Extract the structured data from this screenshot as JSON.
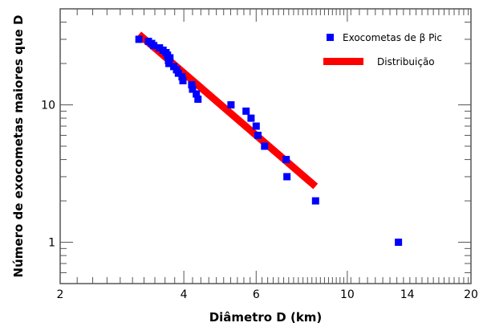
{
  "chart_data": {
    "type": "scatter",
    "xscale": "log",
    "yscale": "log",
    "xlabel": "Diâmetro D (km)",
    "ylabel": "Número de exocometas maiores que D",
    "xlim": [
      2,
      20
    ],
    "ylim": [
      0.5,
      50
    ],
    "xticks": [
      2,
      4,
      6,
      10,
      14,
      20
    ],
    "yticks": [
      1,
      10
    ],
    "grid": false,
    "legend_placement": "top-right",
    "series": [
      {
        "name": "Exocometas de β Pic",
        "kind": "scatter",
        "color": "#0000ff",
        "points": [
          [
            3.11,
            30
          ],
          [
            3.28,
            29
          ],
          [
            3.34,
            28
          ],
          [
            3.38,
            27
          ],
          [
            3.49,
            26
          ],
          [
            3.56,
            25
          ],
          [
            3.62,
            24
          ],
          [
            3.65,
            23
          ],
          [
            3.7,
            22
          ],
          [
            3.67,
            21
          ],
          [
            3.68,
            20
          ],
          [
            3.78,
            19
          ],
          [
            3.84,
            18
          ],
          [
            3.88,
            17
          ],
          [
            3.96,
            16
          ],
          [
            3.98,
            15
          ],
          [
            4.18,
            14
          ],
          [
            4.2,
            13
          ],
          [
            4.29,
            12
          ],
          [
            4.33,
            11
          ],
          [
            5.21,
            10
          ],
          [
            5.67,
            9
          ],
          [
            5.83,
            8
          ],
          [
            6.0,
            7
          ],
          [
            6.06,
            6
          ],
          [
            6.29,
            5
          ],
          [
            7.1,
            4
          ],
          [
            7.13,
            3
          ],
          [
            8.37,
            2
          ],
          [
            13.32,
            1
          ]
        ]
      },
      {
        "name": "Distribuição",
        "kind": "line",
        "color": "#ff0000",
        "points": [
          [
            3.11,
            32.6
          ],
          [
            8.37,
            2.55
          ]
        ]
      }
    ]
  }
}
